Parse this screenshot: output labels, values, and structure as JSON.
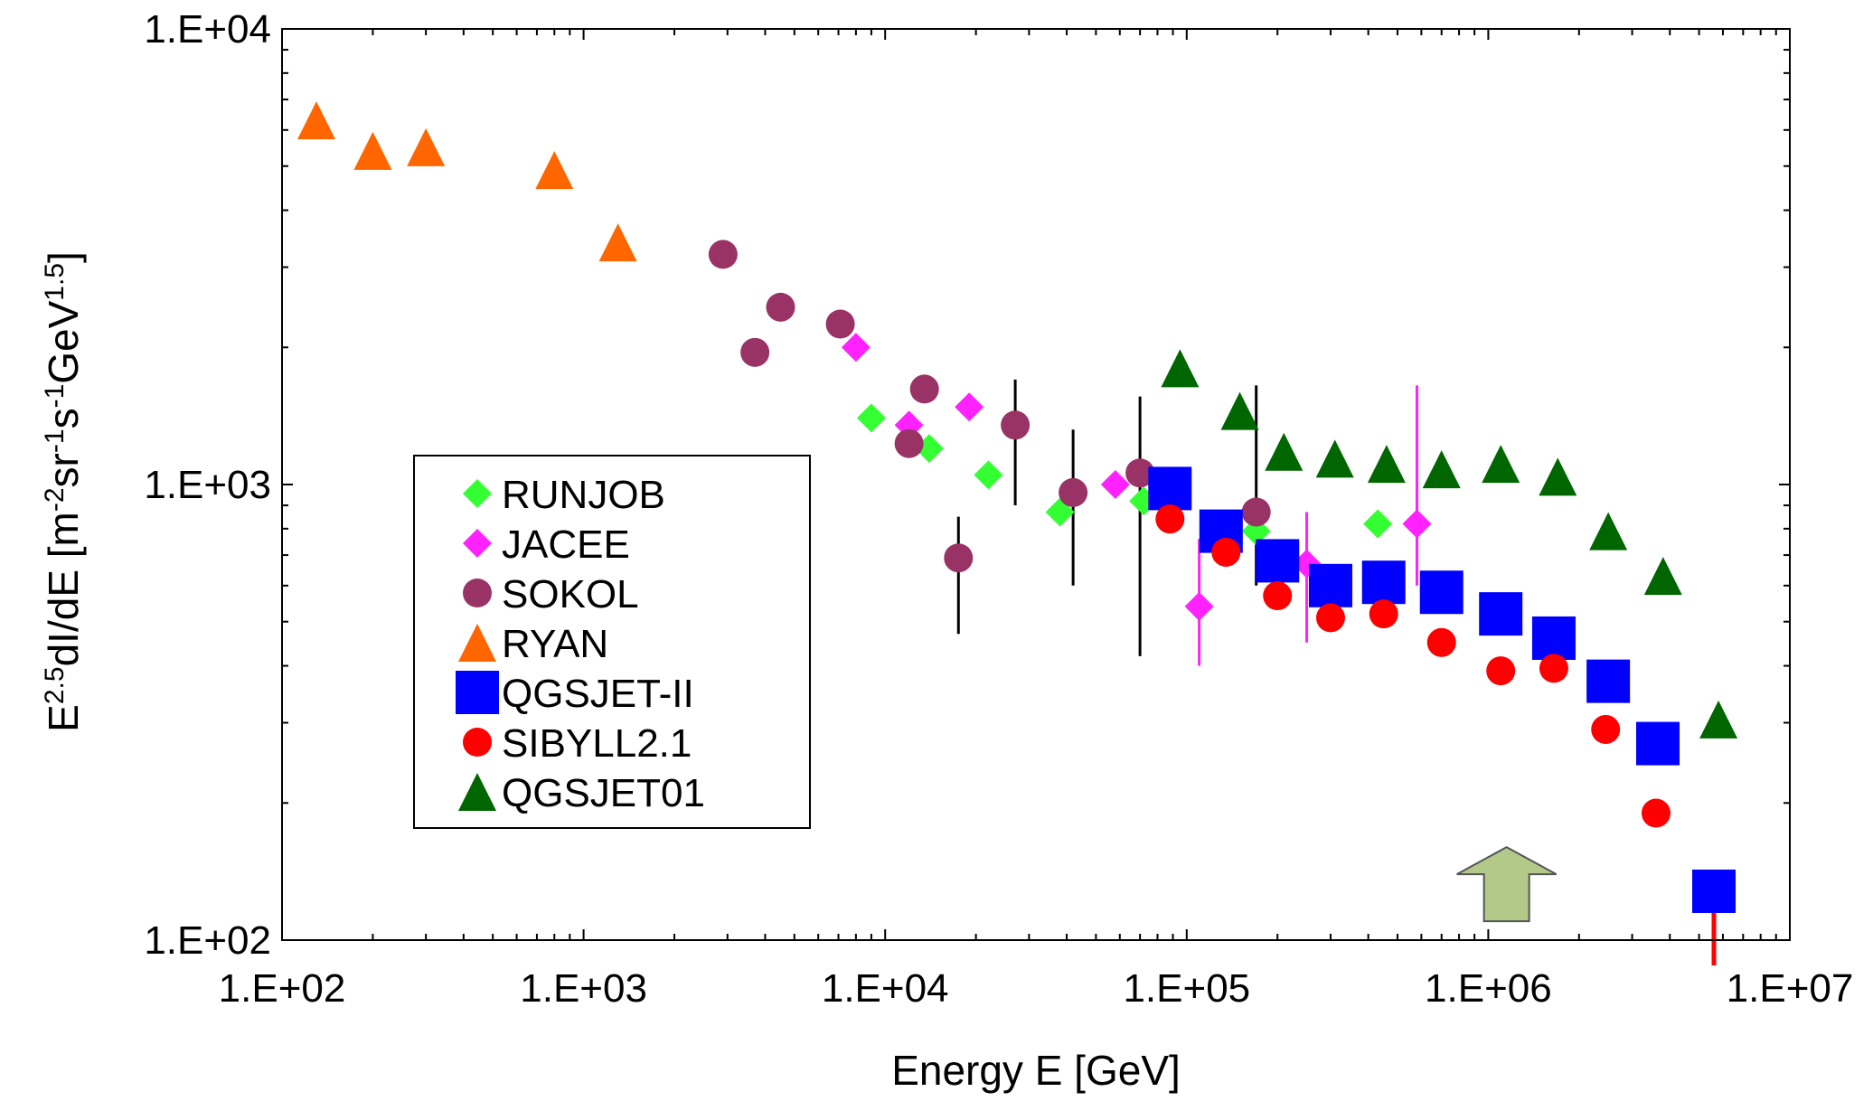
{
  "chart_data": {
    "type": "scatter",
    "xscale": "log",
    "yscale": "log",
    "xlim": [
      100,
      10000000
    ],
    "ylim": [
      100,
      10000
    ],
    "xticks": [
      "1.E+02",
      "1.E+03",
      "1.E+04",
      "1.E+05",
      "1.E+06",
      "1.E+07"
    ],
    "yticks": [
      "1.E+02",
      "1.E+03",
      "1.E+04"
    ],
    "xlabel": "Energy E [GeV]",
    "ylabel": {
      "parts": [
        {
          "t": "E",
          "s": "n"
        },
        {
          "t": "2.5",
          "s": "sup"
        },
        {
          "t": "dI/dE [m",
          "s": "n"
        },
        {
          "t": "-2",
          "s": "sup"
        },
        {
          "t": "sr",
          "s": "n"
        },
        {
          "t": "-1",
          "s": "sup"
        },
        {
          "t": "s",
          "s": "n"
        },
        {
          "t": "-1",
          "s": "sup"
        },
        {
          "t": "GeV",
          "s": "n"
        },
        {
          "t": "1.5",
          "s": "sup"
        },
        {
          "t": "]",
          "s": "n"
        }
      ]
    },
    "grid": false,
    "legend_position": "left-middle",
    "series": [
      {
        "name": "RUNJOB",
        "marker": "diamond",
        "color": "#33ff33",
        "points": [
          {
            "x": 9000,
            "y": 1400
          },
          {
            "x": 14000,
            "y": 1200
          },
          {
            "x": 22000,
            "y": 1050
          },
          {
            "x": 38000,
            "y": 870
          },
          {
            "x": 72000,
            "y": 920
          },
          {
            "x": 170000,
            "y": 790
          },
          {
            "x": 430000,
            "y": 820
          }
        ]
      },
      {
        "name": "JACEE",
        "marker": "diamond",
        "color": "#ff22ff",
        "points": [
          {
            "x": 8000,
            "y": 2000
          },
          {
            "x": 12000,
            "y": 1350
          },
          {
            "x": 19000,
            "y": 1480
          },
          {
            "x": 58000,
            "y": 1000
          },
          {
            "x": 110000,
            "y": 540,
            "err": [
              400,
              760
            ]
          },
          {
            "x": 250000,
            "y": 670,
            "err": [
              450,
              870
            ]
          },
          {
            "x": 580000,
            "y": 820,
            "err": [
              600,
              1650
            ]
          }
        ]
      },
      {
        "name": "SOKOL",
        "marker": "circle",
        "color": "#993366",
        "points": [
          {
            "x": 2900,
            "y": 3200
          },
          {
            "x": 3700,
            "y": 1950
          },
          {
            "x": 4500,
            "y": 2450
          },
          {
            "x": 7100,
            "y": 2250
          },
          {
            "x": 12000,
            "y": 1230
          },
          {
            "x": 13500,
            "y": 1620
          },
          {
            "x": 17500,
            "y": 690,
            "err": [
              470,
              850
            ]
          },
          {
            "x": 27000,
            "y": 1350,
            "err": [
              900,
              1700
            ]
          },
          {
            "x": 42000,
            "y": 960,
            "err": [
              600,
              1320
            ]
          },
          {
            "x": 70000,
            "y": 1060,
            "err": [
              420,
              1560
            ]
          },
          {
            "x": 170000,
            "y": 870,
            "err": [
              600,
              1650
            ]
          }
        ]
      },
      {
        "name": "RYAN",
        "marker": "triangle",
        "color": "#ff6600",
        "points": [
          {
            "x": 130,
            "y": 6300
          },
          {
            "x": 200,
            "y": 5400
          },
          {
            "x": 300,
            "y": 5500
          },
          {
            "x": 800,
            "y": 4900
          },
          {
            "x": 1300,
            "y": 3400
          }
        ]
      },
      {
        "name": "QGSJET-II",
        "marker": "square",
        "color": "#0000ff",
        "points": [
          {
            "x": 88000,
            "y": 980
          },
          {
            "x": 130000,
            "y": 790
          },
          {
            "x": 200000,
            "y": 680
          },
          {
            "x": 300000,
            "y": 600
          },
          {
            "x": 450000,
            "y": 610
          },
          {
            "x": 700000,
            "y": 580
          },
          {
            "x": 1100000,
            "y": 520
          },
          {
            "x": 1650000,
            "y": 460
          },
          {
            "x": 2500000,
            "y": 370
          },
          {
            "x": 3650000,
            "y": 270
          },
          {
            "x": 5600000,
            "y": 128
          }
        ]
      },
      {
        "name": "SIBYLL2.1",
        "marker": "circle",
        "color": "#ff0000",
        "points": [
          {
            "x": 88000,
            "y": 840
          },
          {
            "x": 135000,
            "y": 710
          },
          {
            "x": 200000,
            "y": 570
          },
          {
            "x": 300000,
            "y": 510
          },
          {
            "x": 450000,
            "y": 520
          },
          {
            "x": 700000,
            "y": 450
          },
          {
            "x": 1100000,
            "y": 390
          },
          {
            "x": 1650000,
            "y": 395
          },
          {
            "x": 2450000,
            "y": 290
          },
          {
            "x": 3600000,
            "y": 190
          }
        ]
      },
      {
        "name": "QGSJET01",
        "marker": "triangle",
        "color": "#006600",
        "points": [
          {
            "x": 95000,
            "y": 1800
          },
          {
            "x": 150000,
            "y": 1450
          },
          {
            "x": 210000,
            "y": 1180
          },
          {
            "x": 310000,
            "y": 1140
          },
          {
            "x": 460000,
            "y": 1110
          },
          {
            "x": 700000,
            "y": 1080
          },
          {
            "x": 1100000,
            "y": 1110
          },
          {
            "x": 1700000,
            "y": 1040
          },
          {
            "x": 2500000,
            "y": 790
          },
          {
            "x": 3800000,
            "y": 630
          },
          {
            "x": 5800000,
            "y": 305
          }
        ]
      }
    ],
    "annotations": [
      {
        "type": "arrow-up",
        "x": 1150000,
        "y": 125,
        "color": "#b3c98a",
        "stroke": "#555555"
      },
      {
        "type": "line",
        "x": 5600000,
        "from": 88,
        "to": 128,
        "color": "#ff0000"
      }
    ]
  }
}
